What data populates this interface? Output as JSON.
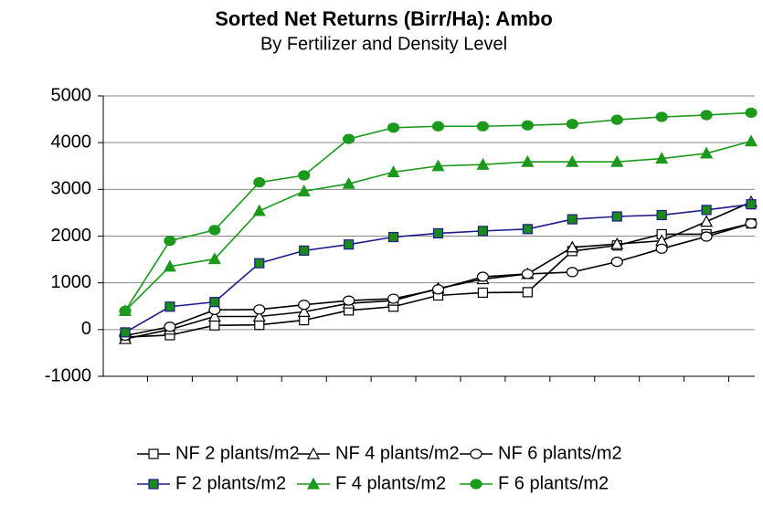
{
  "chart_data": {
    "type": "line",
    "title": "Sorted Net Returns (Birr/Ha): Ambo",
    "subtitle": "By Fertilizer and Density Level",
    "categories": [
      null,
      null,
      null,
      null,
      null,
      null,
      null,
      null,
      null,
      null,
      null,
      null,
      null,
      null,
      null
    ],
    "ylim": [
      -1000,
      5000
    ],
    "yticks": [
      -1000,
      0,
      1000,
      2000,
      3000,
      4000,
      5000
    ],
    "grid": true,
    "series": [
      {
        "name": "NF 2 plants/m2",
        "color": "#000000",
        "marker": "square",
        "marker_fill": "#ffffff",
        "values": [
          -160,
          -120,
          90,
          100,
          200,
          410,
          490,
          730,
          790,
          800,
          1680,
          1800,
          2040,
          2040,
          2270
        ]
      },
      {
        "name": "NF 4 plants/m2",
        "color": "#000000",
        "marker": "triangle",
        "marker_fill": "#ffffff",
        "values": [
          -200,
          0,
          280,
          280,
          380,
          560,
          620,
          880,
          1080,
          1190,
          1760,
          1830,
          1900,
          2310,
          2730
        ]
      },
      {
        "name": "NF 6 plants/m2",
        "color": "#000000",
        "marker": "circle",
        "marker_fill": "#ffffff",
        "values": [
          -130,
          60,
          420,
          430,
          530,
          620,
          660,
          860,
          1130,
          1190,
          1230,
          1450,
          1730,
          1990,
          2270
        ]
      },
      {
        "name": "F 2 plants/m2",
        "color": "#1c1c8c",
        "marker": "square",
        "marker_fill": "#1a8a1a",
        "values": [
          -60,
          490,
          590,
          1420,
          1690,
          1820,
          1980,
          2060,
          2110,
          2150,
          2360,
          2420,
          2450,
          2560,
          2680
        ]
      },
      {
        "name": "F 4 plants/m2",
        "color": "#1a991a",
        "marker": "triangle",
        "marker_fill": "#1a991a",
        "values": [
          400,
          1350,
          1510,
          2540,
          2960,
          3120,
          3370,
          3500,
          3530,
          3590,
          3590,
          3590,
          3660,
          3770,
          4030
        ]
      },
      {
        "name": "F 6 plants/m2",
        "color": "#1a991a",
        "marker": "circle",
        "marker_fill": "#1a991a",
        "values": [
          400,
          1900,
          2130,
          3150,
          3300,
          4080,
          4320,
          4350,
          4350,
          4370,
          4400,
          4490,
          4550,
          4590,
          4640
        ]
      }
    ]
  }
}
